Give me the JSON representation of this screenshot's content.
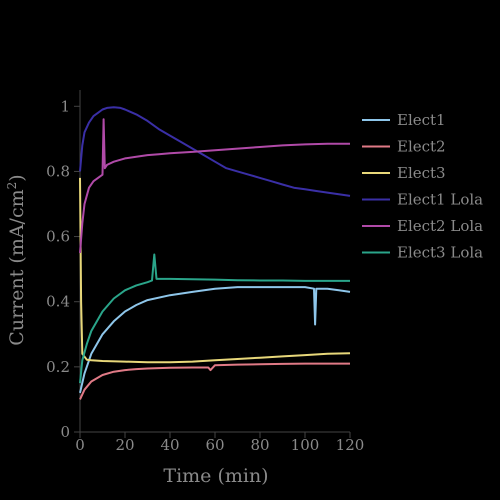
{
  "chart_data": {
    "type": "line",
    "title": "",
    "xlabel": "Time (min)",
    "ylabel": "Current (mA/cm²)",
    "ylabel_main": "Current (mA/cm",
    "ylabel_sup": "2",
    "ylabel_close": ")",
    "xlim": [
      0,
      120
    ],
    "ylim": [
      0,
      1.05
    ],
    "xticks": [
      "0",
      "20",
      "40",
      "60",
      "80",
      "100",
      "120"
    ],
    "yticks": [
      "0",
      "0.2",
      "0.4",
      "0.6",
      "0.8",
      "1"
    ],
    "grid": false,
    "legend_position": "top-right",
    "series": [
      {
        "name": "Elect1",
        "color": "#8ec6ea",
        "x": [
          0,
          2,
          5,
          10,
          15,
          20,
          25,
          30,
          40,
          50,
          60,
          70,
          80,
          90,
          100,
          104,
          104.5,
          105,
          110,
          115,
          120
        ],
        "y": [
          0.12,
          0.18,
          0.24,
          0.3,
          0.34,
          0.37,
          0.39,
          0.405,
          0.42,
          0.43,
          0.44,
          0.445,
          0.445,
          0.445,
          0.445,
          0.44,
          0.33,
          0.44,
          0.44,
          0.435,
          0.43
        ]
      },
      {
        "name": "Elect2",
        "color": "#e07a86",
        "x": [
          0,
          2,
          5,
          10,
          15,
          20,
          25,
          30,
          40,
          50,
          57,
          58,
          60,
          70,
          80,
          90,
          100,
          110,
          120
        ],
        "y": [
          0.1,
          0.13,
          0.155,
          0.175,
          0.185,
          0.19,
          0.193,
          0.195,
          0.197,
          0.198,
          0.198,
          0.19,
          0.205,
          0.207,
          0.208,
          0.209,
          0.21,
          0.21,
          0.21
        ]
      },
      {
        "name": "Elect3",
        "color": "#e8d87a",
        "x": [
          0,
          0.5,
          1,
          3,
          5,
          10,
          20,
          30,
          40,
          50,
          60,
          70,
          80,
          90,
          100,
          110,
          120
        ],
        "y": [
          0.78,
          0.4,
          0.24,
          0.222,
          0.22,
          0.218,
          0.216,
          0.214,
          0.214,
          0.216,
          0.22,
          0.224,
          0.228,
          0.232,
          0.236,
          0.24,
          0.242
        ]
      },
      {
        "name": "Elect1 Lola",
        "color": "#3a2fa6",
        "x": [
          0,
          1,
          2,
          4,
          6,
          8,
          10,
          12,
          15,
          18,
          20,
          25,
          30,
          35,
          40,
          45,
          50,
          55,
          60,
          65,
          70,
          75,
          80,
          85,
          90,
          95,
          100,
          105,
          110,
          115,
          120
        ],
        "y": [
          0.8,
          0.88,
          0.92,
          0.95,
          0.97,
          0.98,
          0.99,
          0.995,
          0.997,
          0.995,
          0.99,
          0.975,
          0.955,
          0.93,
          0.91,
          0.89,
          0.87,
          0.85,
          0.83,
          0.81,
          0.8,
          0.79,
          0.78,
          0.77,
          0.76,
          0.75,
          0.745,
          0.74,
          0.735,
          0.73,
          0.725
        ]
      },
      {
        "name": "Elect2 Lola",
        "color": "#b04aa8",
        "x": [
          0,
          1,
          2,
          4,
          6,
          8,
          10,
          10.5,
          11,
          12,
          15,
          20,
          25,
          30,
          35,
          40,
          50,
          60,
          70,
          80,
          90,
          100,
          110,
          120
        ],
        "y": [
          0.55,
          0.64,
          0.7,
          0.75,
          0.77,
          0.78,
          0.79,
          0.96,
          0.81,
          0.82,
          0.83,
          0.84,
          0.845,
          0.85,
          0.853,
          0.856,
          0.86,
          0.865,
          0.87,
          0.875,
          0.88,
          0.883,
          0.885,
          0.885
        ]
      },
      {
        "name": "Elect3 Lola",
        "color": "#2aa58a",
        "x": [
          0,
          1,
          3,
          5,
          10,
          15,
          20,
          25,
          30,
          32,
          33,
          34,
          40,
          50,
          60,
          70,
          80,
          90,
          100,
          110,
          120
        ],
        "y": [
          0.15,
          0.22,
          0.27,
          0.31,
          0.37,
          0.41,
          0.435,
          0.45,
          0.46,
          0.465,
          0.545,
          0.47,
          0.47,
          0.469,
          0.468,
          0.466,
          0.465,
          0.465,
          0.464,
          0.464,
          0.464
        ]
      }
    ]
  }
}
